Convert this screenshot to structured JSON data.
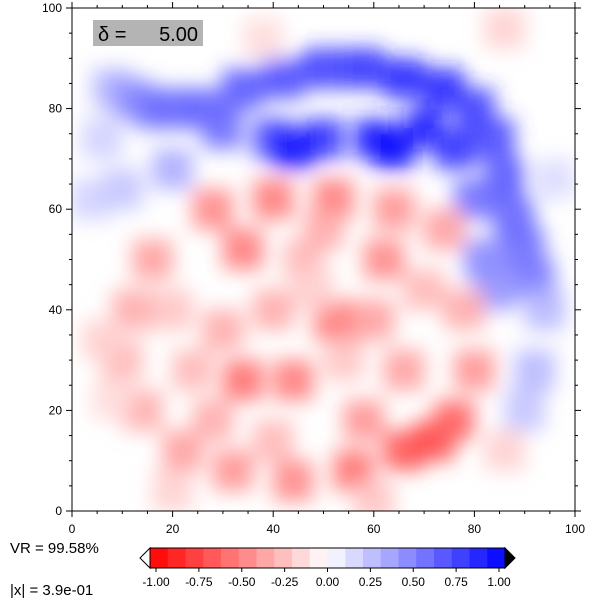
{
  "stats": {
    "vr_text": "VR = 99.58%",
    "norm_text": "|x| = 3.9e-01"
  },
  "chart_data": {
    "type": "heatmap",
    "title": "",
    "xlabel": "",
    "ylabel": "",
    "xlim": [
      0,
      100
    ],
    "ylim": [
      0,
      100
    ],
    "x_ticks": [
      0,
      20,
      40,
      60,
      80,
      100
    ],
    "y_ticks": [
      0,
      20,
      40,
      60,
      80,
      100
    ],
    "grid": false,
    "annotation": {
      "symbol": "δ",
      "label": "δ =",
      "value": "5.00",
      "placement": "top-left"
    },
    "cells": [
      {
        "x": 8,
        "y": 84,
        "v": 0.3
      },
      {
        "x": 12,
        "y": 82,
        "v": 0.45
      },
      {
        "x": 16,
        "y": 80,
        "v": 0.55
      },
      {
        "x": 20,
        "y": 80,
        "v": 0.6
      },
      {
        "x": 26,
        "y": 80,
        "v": 0.65
      },
      {
        "x": 34,
        "y": 84,
        "v": 0.7
      },
      {
        "x": 42,
        "y": 86,
        "v": 0.75
      },
      {
        "x": 50,
        "y": 88,
        "v": 0.8
      },
      {
        "x": 58,
        "y": 88,
        "v": 0.85
      },
      {
        "x": 66,
        "y": 86,
        "v": 0.9
      },
      {
        "x": 74,
        "y": 84,
        "v": 0.9
      },
      {
        "x": 80,
        "y": 80,
        "v": 0.8
      },
      {
        "x": 84,
        "y": 74,
        "v": 0.75
      },
      {
        "x": 86,
        "y": 66,
        "v": 0.7
      },
      {
        "x": 88,
        "y": 58,
        "v": 0.65
      },
      {
        "x": 90,
        "y": 52,
        "v": 0.6
      },
      {
        "x": 92,
        "y": 46,
        "v": 0.55
      },
      {
        "x": 30,
        "y": 76,
        "v": 0.6
      },
      {
        "x": 40,
        "y": 74,
        "v": 0.75
      },
      {
        "x": 50,
        "y": 74,
        "v": 0.85
      },
      {
        "x": 60,
        "y": 74,
        "v": 0.9
      },
      {
        "x": 70,
        "y": 76,
        "v": 0.95
      },
      {
        "x": 44,
        "y": 72,
        "v": 1.0
      },
      {
        "x": 64,
        "y": 72,
        "v": 1.0
      },
      {
        "x": 76,
        "y": 72,
        "v": 0.85
      },
      {
        "x": 20,
        "y": 68,
        "v": 0.35
      },
      {
        "x": 10,
        "y": 64,
        "v": 0.25
      },
      {
        "x": 4,
        "y": 62,
        "v": 0.2
      },
      {
        "x": 80,
        "y": 62,
        "v": 0.6
      },
      {
        "x": 82,
        "y": 50,
        "v": 0.5
      },
      {
        "x": 84,
        "y": 44,
        "v": 0.45
      },
      {
        "x": 94,
        "y": 40,
        "v": 0.3
      },
      {
        "x": 92,
        "y": 28,
        "v": 0.3
      },
      {
        "x": 90,
        "y": 20,
        "v": 0.25
      },
      {
        "x": 96,
        "y": 66,
        "v": 0.15
      },
      {
        "x": 6,
        "y": 74,
        "v": 0.2
      },
      {
        "x": 28,
        "y": 60,
        "v": -0.5
      },
      {
        "x": 40,
        "y": 62,
        "v": -0.55
      },
      {
        "x": 52,
        "y": 62,
        "v": -0.55
      },
      {
        "x": 64,
        "y": 60,
        "v": -0.45
      },
      {
        "x": 74,
        "y": 56,
        "v": -0.4
      },
      {
        "x": 16,
        "y": 50,
        "v": -0.4
      },
      {
        "x": 12,
        "y": 40,
        "v": -0.35
      },
      {
        "x": 10,
        "y": 30,
        "v": -0.3
      },
      {
        "x": 14,
        "y": 20,
        "v": -0.35
      },
      {
        "x": 22,
        "y": 12,
        "v": -0.4
      },
      {
        "x": 32,
        "y": 8,
        "v": -0.45
      },
      {
        "x": 44,
        "y": 6,
        "v": -0.5
      },
      {
        "x": 56,
        "y": 8,
        "v": -0.6
      },
      {
        "x": 66,
        "y": 12,
        "v": -0.7
      },
      {
        "x": 72,
        "y": 14,
        "v": -0.75
      },
      {
        "x": 76,
        "y": 18,
        "v": -0.65
      },
      {
        "x": 80,
        "y": 28,
        "v": -0.45
      },
      {
        "x": 78,
        "y": 40,
        "v": -0.35
      },
      {
        "x": 34,
        "y": 52,
        "v": -0.55
      },
      {
        "x": 46,
        "y": 50,
        "v": -0.3
      },
      {
        "x": 62,
        "y": 50,
        "v": -0.5
      },
      {
        "x": 40,
        "y": 40,
        "v": -0.35
      },
      {
        "x": 52,
        "y": 38,
        "v": -0.55
      },
      {
        "x": 60,
        "y": 38,
        "v": -0.4
      },
      {
        "x": 34,
        "y": 26,
        "v": -0.6
      },
      {
        "x": 44,
        "y": 26,
        "v": -0.55
      },
      {
        "x": 30,
        "y": 36,
        "v": -0.35
      },
      {
        "x": 66,
        "y": 28,
        "v": -0.4
      },
      {
        "x": 58,
        "y": 18,
        "v": -0.45
      },
      {
        "x": 24,
        "y": 28,
        "v": -0.3
      },
      {
        "x": 20,
        "y": 40,
        "v": -0.25
      },
      {
        "x": 70,
        "y": 44,
        "v": -0.3
      },
      {
        "x": 48,
        "y": 44,
        "v": -0.2
      },
      {
        "x": 54,
        "y": 30,
        "v": -0.25
      },
      {
        "x": 28,
        "y": 18,
        "v": -0.35
      },
      {
        "x": 40,
        "y": 14,
        "v": -0.3
      },
      {
        "x": 6,
        "y": 34,
        "v": -0.2
      },
      {
        "x": 8,
        "y": 22,
        "v": -0.15
      },
      {
        "x": 20,
        "y": 4,
        "v": -0.2
      },
      {
        "x": 60,
        "y": 2,
        "v": -0.25
      },
      {
        "x": 86,
        "y": 12,
        "v": -0.2
      },
      {
        "x": 38,
        "y": 94,
        "v": -0.15
      },
      {
        "x": 86,
        "y": 96,
        "v": -0.2
      },
      {
        "x": 50,
        "y": 56,
        "v": -0.35
      }
    ],
    "colorbar": {
      "ticks": [
        "-1.00",
        "-0.75",
        "-0.50",
        "-0.25",
        "0.00",
        "0.25",
        "0.50",
        "0.75",
        "1.00"
      ],
      "range": [
        -1.0,
        1.0
      ],
      "steps": 20,
      "neg_color": "#ff0000",
      "pos_color": "#0000ff",
      "mid_color": "#ffffff",
      "low_triangle_color": "#ffffff",
      "high_triangle_color": "#000000"
    },
    "annotation_bg": "#b4b4b4"
  }
}
